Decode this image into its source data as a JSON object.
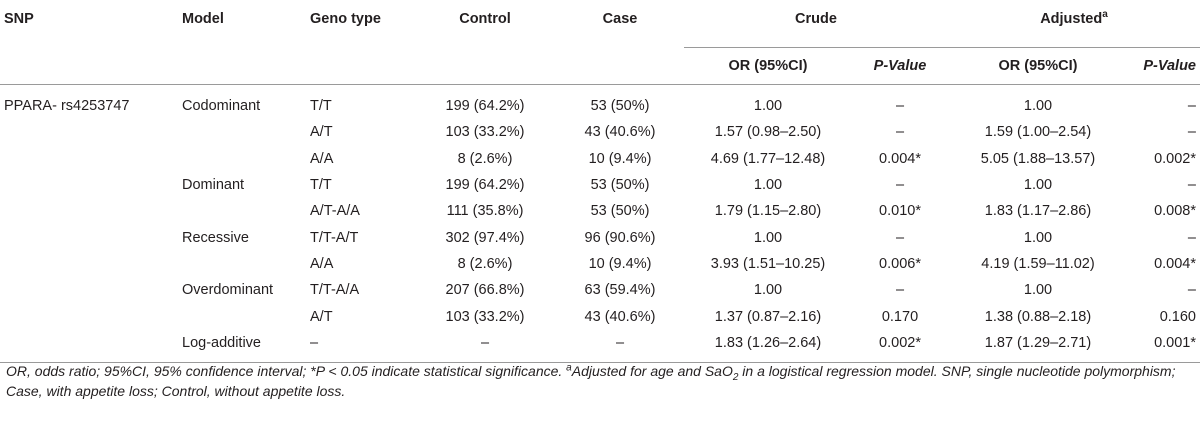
{
  "header": {
    "snp": "SNP",
    "model": "Model",
    "genotype": "Geno type",
    "control": "Control",
    "case": "Case",
    "crude": "Crude",
    "adjusted": "Adjusted",
    "adjusted_sup": "a",
    "or_ci": "OR (95%CI)",
    "p_value": "P-Value"
  },
  "snp_name": "PPARA- rs4253747",
  "rows": [
    {
      "model": "Codominant",
      "genotype": "T/T",
      "control": "199 (64.2%)",
      "case": "53 (50%)",
      "crude_or": "1.00",
      "crude_p": "–",
      "adj_or": "1.00",
      "adj_p": "–"
    },
    {
      "model": "",
      "genotype": "A/T",
      "control": "103 (33.2%)",
      "case": "43 (40.6%)",
      "crude_or": "1.57 (0.98–2.50)",
      "crude_p": "–",
      "adj_or": "1.59 (1.00–2.54)",
      "adj_p": "–"
    },
    {
      "model": "",
      "genotype": "A/A",
      "control": "8 (2.6%)",
      "case": "10 (9.4%)",
      "crude_or": "4.69 (1.77–12.48)",
      "crude_p": "0.004*",
      "adj_or": "5.05 (1.88–13.57)",
      "adj_p": "0.002*"
    },
    {
      "model": "Dominant",
      "genotype": "T/T",
      "control": "199 (64.2%)",
      "case": "53 (50%)",
      "crude_or": "1.00",
      "crude_p": "–",
      "adj_or": "1.00",
      "adj_p": "–"
    },
    {
      "model": "",
      "genotype": "A/T-A/A",
      "control": "111 (35.8%)",
      "case": "53 (50%)",
      "crude_or": "1.79 (1.15–2.80)",
      "crude_p": "0.010*",
      "adj_or": "1.83 (1.17–2.86)",
      "adj_p": "0.008*"
    },
    {
      "model": "Recessive",
      "genotype": "T/T-A/T",
      "control": "302 (97.4%)",
      "case": "96 (90.6%)",
      "crude_or": "1.00",
      "crude_p": "–",
      "adj_or": "1.00",
      "adj_p": "–"
    },
    {
      "model": "",
      "genotype": "A/A",
      "control": "8 (2.6%)",
      "case": "10 (9.4%)",
      "crude_or": "3.93 (1.51–10.25)",
      "crude_p": "0.006*",
      "adj_or": "4.19 (1.59–11.02)",
      "adj_p": "0.004*"
    },
    {
      "model": "Overdominant",
      "genotype": "T/T-A/A",
      "control": "207 (66.8%)",
      "case": "63 (59.4%)",
      "crude_or": "1.00",
      "crude_p": "–",
      "adj_or": "1.00",
      "adj_p": "–"
    },
    {
      "model": "",
      "genotype": "A/T",
      "control": "103 (33.2%)",
      "case": "43 (40.6%)",
      "crude_or": "1.37 (0.87–2.16)",
      "crude_p": "0.170",
      "adj_or": "1.38 (0.88–2.18)",
      "adj_p": "0.160"
    },
    {
      "model": "Log-additive",
      "genotype": "–",
      "control": "–",
      "case": "–",
      "crude_or": "1.83 (1.26–2.64)",
      "crude_p": "0.002*",
      "adj_or": "1.87 (1.29–2.71)",
      "adj_p": "0.001*"
    }
  ],
  "footnote": {
    "part1": "OR, odds ratio; 95%CI, 95% confidence interval; *P < 0.05 indicate statistical significance. ",
    "sup": "a",
    "part2": "Adjusted for age and SaO",
    "sub": "2",
    "part3": " in a logistical regression model. SNP, single nucleotide polymorphism; Case, with appetite loss; Control, without appetite loss."
  }
}
